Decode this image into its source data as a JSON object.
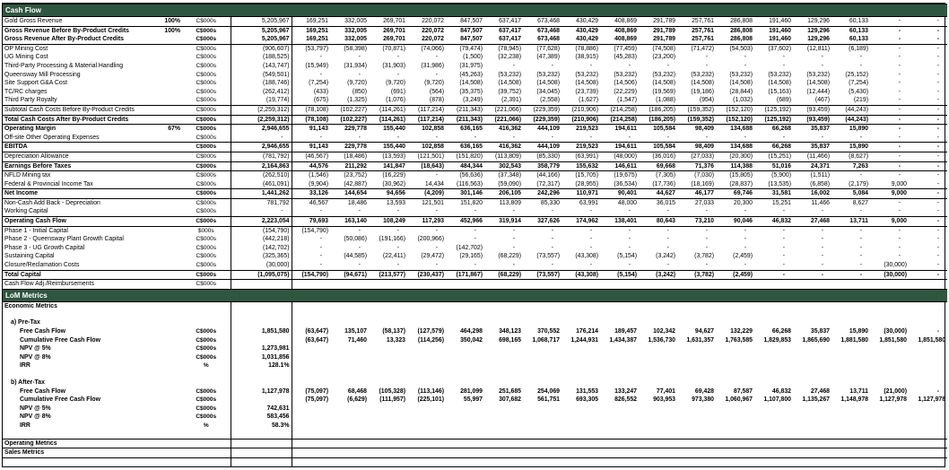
{
  "colors": {
    "band_bg": "#2f5640",
    "band_text": "#ffffff",
    "grid_border": "#000000"
  },
  "column_count": 17,
  "rows": [
    {
      "band": "Cash Flow"
    },
    {
      "label": "Gold Gross Revenue",
      "pct": "100%",
      "unit": "C$000s",
      "total": "5,205,967",
      "vals": [
        "169,251",
        "332,005",
        "269,701",
        "220,072",
        "847,507",
        "637,417",
        "673,468",
        "430,429",
        "408,869",
        "291,789",
        "257,761",
        "286,808",
        "191,460",
        "129,296",
        "60,133",
        "-",
        "-"
      ],
      "bd": "b"
    },
    {
      "label": "Gross Revenue Before By-Product Credits",
      "pct": "100%",
      "unit": "C$000s",
      "total": "5,205,967",
      "vals": [
        "169,251",
        "332,005",
        "269,701",
        "220,072",
        "847,507",
        "637,417",
        "673,468",
        "430,429",
        "408,869",
        "291,789",
        "257,761",
        "286,808",
        "191,460",
        "129,296",
        "60,133",
        "-",
        "-"
      ],
      "bold": true
    },
    {
      "label": "Gross Revenue After By-Product Credits",
      "unit": "C$000s",
      "total": "5,205,967",
      "vals": [
        "169,251",
        "332,005",
        "269,701",
        "220,072",
        "847,507",
        "637,417",
        "673,468",
        "430,429",
        "408,869",
        "291,789",
        "257,761",
        "286,808",
        "191,460",
        "129,296",
        "60,133",
        "-",
        "-"
      ],
      "bold": true,
      "bd": "b"
    },
    {
      "label": "OP Mining Cost",
      "unit": "C$000s",
      "total": "(906,607)",
      "vals": [
        "(53,797)",
        "(58,398)",
        "(70,871)",
        "(74,066)",
        "(79,474)",
        "(78,945)",
        "(77,628)",
        "(78,886)",
        "(77,459)",
        "(74,508)",
        "(71,472)",
        "(54,503)",
        "(37,602)",
        "(12,811)",
        "(6,189)",
        "-",
        "-"
      ]
    },
    {
      "label": "UG Mining Cost",
      "unit": "C$000s",
      "total": "(188,525)",
      "vals": [
        "-",
        "-",
        "-",
        "-",
        "(1,500)",
        "(32,238)",
        "(47,389)",
        "(38,915)",
        "(45,283)",
        "(23,200)",
        "-",
        "-",
        "-",
        "-",
        "-",
        "-",
        "-"
      ]
    },
    {
      "label": "Third-Party Processing & Material Handling",
      "unit": "C$000s",
      "total": "(143,747)",
      "vals": [
        "(15,949)",
        "(31,934)",
        "(31,903)",
        "(31,986)",
        "(31,975)",
        "-",
        "-",
        "-",
        "-",
        "-",
        "-",
        "-",
        "-",
        "-",
        "-",
        "-",
        "-"
      ]
    },
    {
      "label": "Queensway Mill Processing",
      "unit": "C$000s",
      "total": "(549,501)",
      "vals": [
        "-",
        "-",
        "-",
        "-",
        "(45,263)",
        "(53,232)",
        "(53,232)",
        "(53,232)",
        "(53,232)",
        "(53,232)",
        "(53,232)",
        "(53,232)",
        "(53,232)",
        "(53,232)",
        "(25,152)",
        "-",
        "-"
      ]
    },
    {
      "label": "Site Support G&A Cost",
      "unit": "C$000s",
      "total": "(188,746)",
      "vals": [
        "(7,254)",
        "(9,720)",
        "(9,720)",
        "(9,720)",
        "(14,508)",
        "(14,508)",
        "(14,508)",
        "(14,508)",
        "(14,506)",
        "(14,508)",
        "(14,508)",
        "(14,508)",
        "(14,508)",
        "(14,508)",
        "(7,254)",
        "-",
        "-"
      ]
    },
    {
      "label": "TC/RC charges",
      "unit": "C$000s",
      "total": "(262,412)",
      "vals": [
        "(433)",
        "(850)",
        "(691)",
        "(564)",
        "(35,375)",
        "(39,752)",
        "(34,045)",
        "(23,739)",
        "(22,229)",
        "(19,569)",
        "(19,186)",
        "(28,844)",
        "(15,163)",
        "(12,444)",
        "(5,430)",
        "-",
        "-"
      ]
    },
    {
      "label": "Third Party Royalty",
      "unit": "C$000s",
      "total": "(19,774)",
      "vals": [
        "(675)",
        "(1,325)",
        "(1,076)",
        "(878)",
        "(3,249)",
        "(2,391)",
        "(2,558)",
        "(1,627)",
        "(1,547)",
        "(1,088)",
        "(954)",
        "(1,032)",
        "(689)",
        "(467)",
        "(219)",
        "-",
        "-"
      ]
    },
    {
      "label": "Subtotal Cash Costs Before By-Product Credits",
      "unit": "C$000s",
      "total": "(2,259,312)",
      "vals": [
        "(78,108)",
        "(102,227)",
        "(114,261)",
        "(117,214)",
        "(211,343)",
        "(221,066)",
        "(229,359)",
        "(210,906)",
        "(214,258)",
        "(186,205)",
        "(159,352)",
        "(152,120)",
        "(125,192)",
        "(93,459)",
        "(44,243)",
        "-",
        "-"
      ],
      "bd": "t"
    },
    {
      "label": "Total Cash Costs After By-Product Credits",
      "unit": "C$000s",
      "total": "(2,259,312)",
      "vals": [
        "(78,108)",
        "(102,227)",
        "(114,261)",
        "(117,214)",
        "(211,343)",
        "(221,066)",
        "(229,359)",
        "(210,906)",
        "(214,258)",
        "(186,205)",
        "(159,352)",
        "(152,120)",
        "(125,192)",
        "(93,459)",
        "(44,243)",
        "-",
        "-"
      ],
      "bold": true,
      "bd": "tb"
    },
    {
      "label": "Operating Margin",
      "pct": "67%",
      "unit": "C$000s",
      "total": "2,946,655",
      "vals": [
        "91,143",
        "229,778",
        "155,440",
        "102,858",
        "636,165",
        "416,362",
        "444,109",
        "219,523",
        "194,611",
        "105,584",
        "98,409",
        "134,688",
        "66,268",
        "35,837",
        "15,890",
        "-",
        "-"
      ],
      "bold": true
    },
    {
      "label": "Off-site Other Operating Expenses",
      "unit": "C$000s",
      "total": "-",
      "vals": [
        "-",
        "-",
        "-",
        "-",
        "-",
        "-",
        "-",
        "-",
        "-",
        "-",
        "-",
        "-",
        "-",
        "-",
        "-",
        "-",
        "-"
      ]
    },
    {
      "label": "EBITDA",
      "unit": "C$000s",
      "total": "2,946,655",
      "vals": [
        "91,143",
        "229,778",
        "155,440",
        "102,858",
        "636,165",
        "416,362",
        "444,109",
        "219,523",
        "194,611",
        "105,584",
        "98,409",
        "134,688",
        "66,268",
        "35,837",
        "15,890",
        "-",
        "-"
      ],
      "bold": true,
      "bd": "tb"
    },
    {
      "label": "Depreciation Allowance",
      "unit": "C$000s",
      "total": "(781,792)",
      "vals": [
        "(46,567)",
        "(18,486)",
        "(13,593)",
        "(121,501)",
        "(151,820)",
        "(113,809)",
        "(85,330)",
        "(63,991)",
        "(48,000)",
        "(36,016)",
        "(27,033)",
        "(20,300)",
        "(15,251)",
        "(11,466)",
        "(8,627)",
        "-",
        "-"
      ]
    },
    {
      "label": "Earnings Before Taxes",
      "unit": "C$000s",
      "total": "2,164,863",
      "vals": [
        "44,576",
        "211,292",
        "141,847",
        "(18,643)",
        "484,344",
        "302,543",
        "358,779",
        "155,632",
        "146,611",
        "69,668",
        "71,376",
        "114,388",
        "51,016",
        "24,371",
        "7,263",
        "-",
        "-"
      ],
      "bold": true,
      "bd": "tb"
    },
    {
      "label": "NFLD Mining tax",
      "unit": "C$000s",
      "total": "(262,510)",
      "vals": [
        "(1,546)",
        "(23,752)",
        "(16,229)",
        "-",
        "(56,636)",
        "(37,348)",
        "(44,166)",
        "(15,705)",
        "(19,675)",
        "(7,305)",
        "(7,030)",
        "(15,805)",
        "(5,900)",
        "(1,511)",
        "-",
        "-",
        "-"
      ]
    },
    {
      "label": "Federal & Provincial Income Tax",
      "unit": "C$000s",
      "total": "(461,091)",
      "vals": [
        "(9,904)",
        "(42,887)",
        "(30,962)",
        "14,434",
        "(116,563)",
        "(59,090)",
        "(72,317)",
        "(28,955)",
        "(36,534)",
        "(17,736)",
        "(18,169)",
        "(28,837)",
        "(13,535)",
        "(6,858)",
        "(2,179)",
        "9,000",
        "-"
      ]
    },
    {
      "label": "Net Income",
      "unit": "C$000s",
      "total": "1,441,262",
      "vals": [
        "33,126",
        "144,654",
        "94,656",
        "(4,209)",
        "301,146",
        "206,105",
        "242,296",
        "110,971",
        "90,401",
        "44,627",
        "46,177",
        "69,746",
        "31,581",
        "16,002",
        "5,084",
        "9,000",
        "-"
      ],
      "bold": true,
      "bd": "tb"
    },
    {
      "label": "Non-Cash Add Back - Depreciation",
      "unit": "C$000s",
      "total": "781,792",
      "vals": [
        "46,567",
        "18,486",
        "13,593",
        "121,501",
        "151,820",
        "113,809",
        "85,330",
        "63,991",
        "48,000",
        "36,015",
        "27,033",
        "20,300",
        "15,251",
        "11,466",
        "8,627",
        "-",
        "-"
      ]
    },
    {
      "label": "Working Capital",
      "unit": "C$000s",
      "total": "-",
      "vals": [
        "-",
        "-",
        "-",
        "-",
        "-",
        "-",
        "-",
        "-",
        "-",
        "-",
        "-",
        "-",
        "-",
        "-",
        "-",
        "-",
        "-"
      ]
    },
    {
      "label": "Operating Cash Flow",
      "unit": "C$000s",
      "total": "2,223,054",
      "vals": [
        "79,693",
        "163,140",
        "108,249",
        "117,293",
        "452,966",
        "319,914",
        "327,626",
        "174,962",
        "138,401",
        "80,643",
        "73,210",
        "90,046",
        "46,832",
        "27,468",
        "13,711",
        "9,000",
        "-"
      ],
      "bold": true,
      "bd": "tb"
    },
    {
      "label": "Phase 1 - Initial Capital",
      "unit": "$000s",
      "total": "(154,790)",
      "vals": [
        "(154,790)",
        "-",
        "-",
        "-",
        "-",
        "-",
        "-",
        "-",
        "-",
        "-",
        "-",
        "-",
        "-",
        "-",
        "-",
        "-",
        "-"
      ]
    },
    {
      "label": "Phase 2 - Queensway Plant Growth Capital",
      "unit": "C$000s",
      "total": "(442,218)",
      "vals": [
        "-",
        "(50,086)",
        "(191,166)",
        "(200,966)",
        "-",
        "-",
        "-",
        "-",
        "-",
        "-",
        "-",
        "-",
        "-",
        "-",
        "-",
        "-",
        "-"
      ]
    },
    {
      "label": "Phase 3 - UG Growth Capital",
      "unit": "C$000s",
      "total": "(142,702)",
      "vals": [
        "-",
        "-",
        "-",
        "-",
        "(142,702)",
        "-",
        "-",
        "-",
        "-",
        "-",
        "-",
        "-",
        "-",
        "-",
        "-",
        "-",
        "-"
      ]
    },
    {
      "label": "Sustaining Capital",
      "unit": "C$000s",
      "total": "(325,365)",
      "vals": [
        "-",
        "(44,585)",
        "(22,411)",
        "(29,472)",
        "(29,165)",
        "(68,229)",
        "(73,557)",
        "(43,308)",
        "(5,154)",
        "(3,242)",
        "(3,782)",
        "(2,459)",
        "-",
        "-",
        "-",
        "-",
        "-"
      ]
    },
    {
      "label": "Closure/Reclamation Costs",
      "unit": "C$000s",
      "total": "(30,000)",
      "vals": [
        "-",
        "-",
        "-",
        "-",
        "-",
        "-",
        "-",
        "-",
        "-",
        "-",
        "-",
        "-",
        "-",
        "-",
        "-",
        "(30,000)",
        "-"
      ]
    },
    {
      "label": "Total Capital",
      "unit": "C$000s",
      "total": "(1,095,075)",
      "vals": [
        "(154,790)",
        "(94,671)",
        "(213,577)",
        "(230,437)",
        "(171,867)",
        "(68,229)",
        "(73,557)",
        "(43,308)",
        "(5,154)",
        "(3,242)",
        "(3,782)",
        "(2,459)",
        "-",
        "-",
        "-",
        "(30,000)",
        "-"
      ],
      "bold": true,
      "bd": "tb"
    },
    {
      "label": "Cash Flow Adj./Reimbursements",
      "unit": "C$000s",
      "total": "",
      "vals": []
    },
    {
      "band": "LoM Metrics"
    },
    {
      "label": "Economic Metrics",
      "bold": true
    },
    {},
    {
      "label": "a) Pre-Tax",
      "bold": true,
      "ind": 1
    },
    {
      "label": "Free Cash Flow",
      "ind": 2,
      "bold": true,
      "unit": "C$000s",
      "total": "1,851,580",
      "vals": [
        "(63,647)",
        "135,107",
        "(58,137)",
        "(127,579)",
        "464,298",
        "348,123",
        "370,552",
        "176,214",
        "189,457",
        "102,342",
        "94,627",
        "132,229",
        "66,268",
        "35,837",
        "15,890",
        "(30,000)",
        "-"
      ]
    },
    {
      "label": "Cumulative Free Cash Flow",
      "ind": 2,
      "bold": true,
      "unit": "C$000s",
      "total": "",
      "vals": [
        "(63,647)",
        "71,460",
        "13,323",
        "(114,256)",
        "350,042",
        "698,165",
        "1,068,717",
        "1,244,931",
        "1,434,387",
        "1,536,730",
        "1,631,357",
        "1,763,585",
        "1,829,853",
        "1,865,690",
        "1,881,580",
        "1,851,580",
        "1,851,580"
      ]
    },
    {
      "label": "NPV @ 5%",
      "ind": 2,
      "bold": true,
      "unit": "C$000s",
      "total": "1,273,981",
      "vals": []
    },
    {
      "label": "NPV @ 8%",
      "ind": 2,
      "bold": true,
      "unit": "C$000s",
      "total": "1,031,856",
      "vals": []
    },
    {
      "label": "IRR",
      "ind": 2,
      "bold": true,
      "unit": "%",
      "total": "128.1%",
      "vals": []
    },
    {},
    {
      "label": "b) After-Tax",
      "bold": true,
      "ind": 1
    },
    {
      "label": "Free Cash Flow",
      "ind": 2,
      "bold": true,
      "unit": "C$000s",
      "total": "1,127,978",
      "vals": [
        "(75,097)",
        "68,468",
        "(105,328)",
        "(113,146)",
        "281,099",
        "251,685",
        "254,069",
        "131,553",
        "133,247",
        "77,401",
        "69,428",
        "87,587",
        "46,832",
        "27,468",
        "13,711",
        "(21,000)",
        "-"
      ]
    },
    {
      "label": "Cumulative Free Cash Flow",
      "ind": 2,
      "bold": true,
      "unit": "C$000s",
      "total": "",
      "vals": [
        "(75,097)",
        "(6,629)",
        "(111,957)",
        "(225,101)",
        "55,997",
        "307,682",
        "561,751",
        "693,305",
        "826,552",
        "903,953",
        "973,380",
        "1,060,967",
        "1,107,800",
        "1,135,267",
        "1,148,978",
        "1,127,978",
        "1,127,978"
      ]
    },
    {
      "label": "NPV @ 5%",
      "ind": 2,
      "bold": true,
      "unit": "C$000s",
      "total": "742,631",
      "vals": []
    },
    {
      "label": "NPV @ 8%",
      "ind": 2,
      "bold": true,
      "unit": "C$000s",
      "total": "583,456",
      "vals": []
    },
    {
      "label": "IRR",
      "ind": 2,
      "bold": true,
      "unit": "%",
      "total": "58.3%",
      "vals": []
    },
    {},
    {
      "label": "Operating Metrics",
      "bold": true,
      "bd": "t"
    },
    {
      "label": "Sales Metrics",
      "bold": true,
      "bd": "t"
    },
    {
      "bd": "t"
    }
  ]
}
